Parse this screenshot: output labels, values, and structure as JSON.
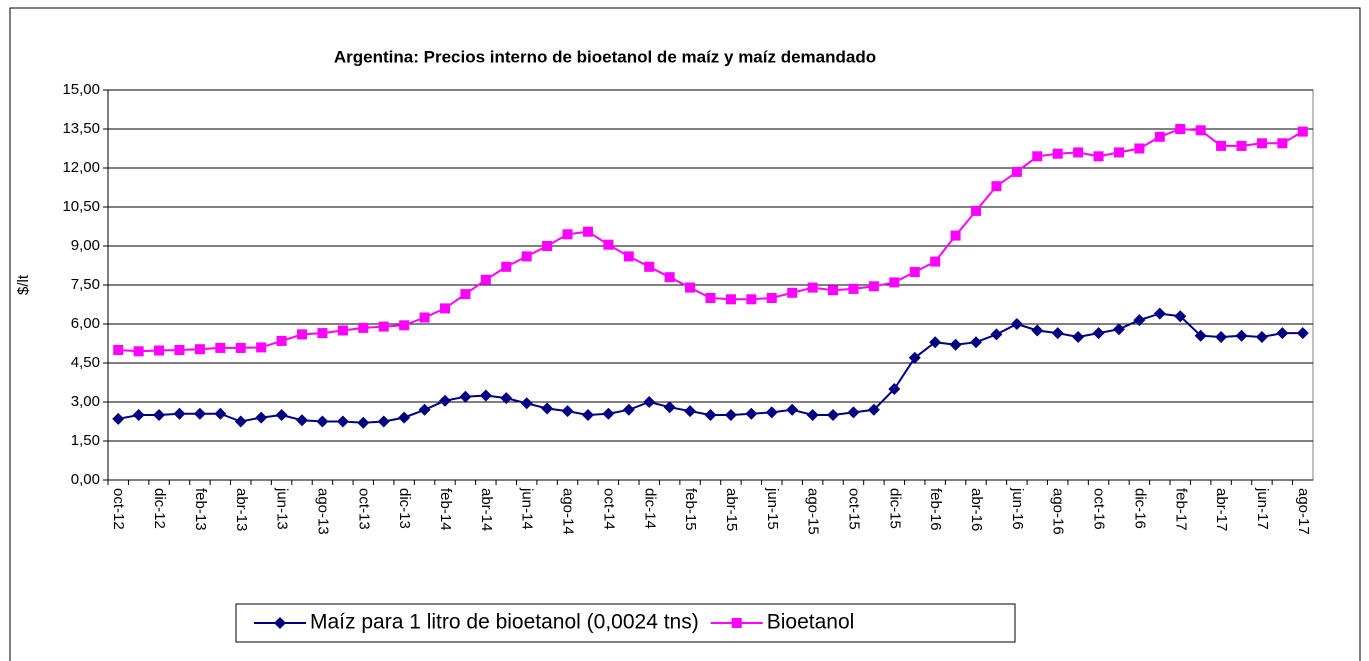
{
  "chart_data": {
    "type": "line",
    "title": "Argentina: Precios interno de bioetanol de maíz y maíz demandado",
    "y_label": "$/lt",
    "categories": [
      "oct-12",
      null,
      "dic-12",
      null,
      "feb-13",
      null,
      "abr-13",
      null,
      "jun-13",
      null,
      "ago-13",
      null,
      "oct-13",
      null,
      "dic-13",
      null,
      "feb-14",
      null,
      "abr-14",
      null,
      "jun-14",
      null,
      "ago-14",
      null,
      "oct-14",
      null,
      "dic-14",
      null,
      "feb-15",
      null,
      "abr-15",
      null,
      "jun-15",
      null,
      "ago-15",
      null,
      "oct-15",
      null,
      "dic-15",
      null,
      "feb-16",
      null,
      "abr-16",
      null,
      "jun-16",
      null,
      "ago-16",
      null,
      "oct-16",
      null,
      "dic-16",
      null,
      "feb-17",
      null,
      "abr-17",
      null,
      "jun-17",
      null,
      "ago-17"
    ],
    "series": [
      {
        "name": "Maíz para 1 litro de bioetanol (0,0024 tns)",
        "color": "#000080",
        "marker": "diamond",
        "values": [
          2.35,
          2.5,
          2.5,
          2.55,
          2.55,
          2.55,
          2.25,
          2.4,
          2.5,
          2.3,
          2.25,
          2.25,
          2.2,
          2.25,
          2.4,
          2.7,
          3.05,
          3.2,
          3.25,
          3.15,
          2.95,
          2.75,
          2.65,
          2.5,
          2.55,
          2.7,
          3.0,
          2.8,
          2.65,
          2.5,
          2.5,
          2.55,
          2.6,
          2.7,
          2.5,
          2.5,
          2.6,
          2.7,
          3.5,
          4.7,
          5.3,
          5.2,
          5.3,
          5.6,
          6.0,
          5.75,
          5.65,
          5.5,
          5.65,
          5.8,
          6.15,
          6.4,
          6.3,
          5.55,
          5.5,
          5.55,
          5.5,
          5.65,
          5.65
        ]
      },
      {
        "name": "Bioetanol",
        "color": "#ff00ff",
        "marker": "square",
        "values": [
          5.0,
          4.95,
          4.98,
          5.0,
          5.03,
          5.08,
          5.08,
          5.1,
          5.35,
          5.6,
          5.65,
          5.75,
          5.85,
          5.9,
          5.95,
          6.25,
          6.6,
          7.15,
          7.7,
          8.2,
          8.6,
          9.0,
          9.45,
          9.55,
          9.05,
          8.6,
          8.2,
          7.8,
          7.4,
          7.0,
          6.95,
          6.95,
          7.0,
          7.2,
          7.4,
          7.3,
          7.35,
          7.45,
          7.6,
          8.0,
          8.4,
          9.4,
          10.35,
          11.3,
          11.85,
          12.45,
          12.55,
          12.6,
          12.45,
          12.6,
          12.75,
          13.2,
          13.5,
          13.45,
          12.85,
          12.85,
          12.95,
          12.95,
          13.4
        ]
      }
    ],
    "ylim": [
      0,
      15
    ],
    "yticks": [
      {
        "value": 0,
        "label": "0,00"
      },
      {
        "value": 1.5,
        "label": "1,50"
      },
      {
        "value": 3,
        "label": "3,00"
      },
      {
        "value": 4.5,
        "label": "4,50"
      },
      {
        "value": 6,
        "label": "6,00"
      },
      {
        "value": 7.5,
        "label": "7,50"
      },
      {
        "value": 9,
        "label": "9,00"
      },
      {
        "value": 10.5,
        "label": "10,50"
      },
      {
        "value": 12,
        "label": "12,00"
      },
      {
        "value": 13.5,
        "label": "13,50"
      },
      {
        "value": 15,
        "label": "15,00"
      }
    ],
    "grid": true,
    "legend": "bottom"
  }
}
